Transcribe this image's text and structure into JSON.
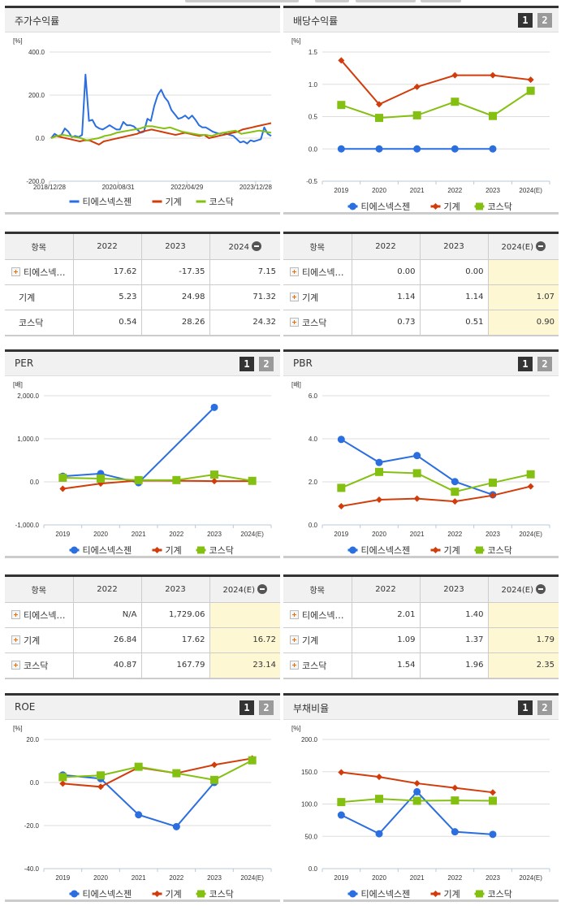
{
  "legend": {
    "s1": "티에스넥스젠",
    "s2": "기계",
    "s3": "코스닥"
  },
  "colors": {
    "s1": "#2a6ee0",
    "s2": "#d23c0a",
    "s3": "#84c011"
  },
  "badges": {
    "b1": "1",
    "b2": "2"
  },
  "panels": {
    "stock": {
      "title": "주가수익률",
      "unit": "[%]",
      "yticks": [
        "400.0",
        "200.0",
        "0.0",
        "-200.0"
      ],
      "xticks": [
        "2018/12/28",
        "2020/08/31",
        "2022/04/29",
        "2023/12/28"
      ]
    },
    "dividend": {
      "title": "배당수익률",
      "unit": "[%]",
      "yticks": [
        "1.5",
        "1.0",
        "0.5",
        "0.0",
        "-0.5"
      ],
      "xticks": [
        "2019",
        "2020",
        "2021",
        "2022",
        "2023",
        "2024(E)"
      ]
    },
    "per": {
      "title": "PER",
      "unit": "[배]",
      "yticks": [
        "2,000.0",
        "1,000.0",
        "0.0",
        "-1,000.0"
      ],
      "xticks": [
        "2019",
        "2020",
        "2021",
        "2022",
        "2023",
        "2024(E)"
      ]
    },
    "pbr": {
      "title": "PBR",
      "unit": "[배]",
      "yticks": [
        "6.0",
        "4.0",
        "2.0",
        "0.0"
      ],
      "xticks": [
        "2019",
        "2020",
        "2021",
        "2022",
        "2023",
        "2024(E)"
      ]
    },
    "roe": {
      "title": "ROE",
      "unit": "[%]",
      "yticks": [
        "20.0",
        "0.0",
        "-20.0",
        "-40.0"
      ],
      "xticks": [
        "2019",
        "2020",
        "2021",
        "2022",
        "2023",
        "2024(E)"
      ]
    },
    "debt": {
      "title": "부채비율",
      "unit": "[%]",
      "yticks": [
        "200.0",
        "150.0",
        "100.0",
        "50.0",
        "0.0"
      ],
      "xticks": [
        "2019",
        "2020",
        "2021",
        "2022",
        "2023",
        "2024(E)"
      ]
    }
  },
  "tables": {
    "stock": {
      "headers": [
        "항목",
        "2022",
        "2023",
        "2024"
      ],
      "rows": [
        {
          "name": "티에스넥…",
          "v": [
            "17.62",
            "-17.35",
            "7.15"
          ]
        },
        {
          "name": "기계",
          "v": [
            "5.23",
            "24.98",
            "71.32"
          ]
        },
        {
          "name": "코스닥",
          "v": [
            "0.54",
            "28.26",
            "24.32"
          ]
        }
      ]
    },
    "dividend": {
      "headers": [
        "항목",
        "2022",
        "2023",
        "2024(E)"
      ],
      "rows": [
        {
          "name": "티에스넥…",
          "v": [
            "0.00",
            "0.00",
            ""
          ]
        },
        {
          "name": "기계",
          "v": [
            "1.14",
            "1.14",
            "1.07"
          ]
        },
        {
          "name": "코스닥",
          "v": [
            "0.73",
            "0.51",
            "0.90"
          ]
        }
      ]
    },
    "per": {
      "headers": [
        "항목",
        "2022",
        "2023",
        "2024(E)"
      ],
      "rows": [
        {
          "name": "티에스넥…",
          "v": [
            "N/A",
            "1,729.06",
            ""
          ]
        },
        {
          "name": "기계",
          "v": [
            "26.84",
            "17.62",
            "16.72"
          ]
        },
        {
          "name": "코스닥",
          "v": [
            "40.87",
            "167.79",
            "23.14"
          ]
        }
      ]
    },
    "pbr": {
      "headers": [
        "항목",
        "2022",
        "2023",
        "2024(E)"
      ],
      "rows": [
        {
          "name": "티에스넥…",
          "v": [
            "2.01",
            "1.40",
            ""
          ]
        },
        {
          "name": "기계",
          "v": [
            "1.09",
            "1.37",
            "1.79"
          ]
        },
        {
          "name": "코스닥",
          "v": [
            "1.54",
            "1.96",
            "2.35"
          ]
        }
      ]
    }
  },
  "chart_data": [
    {
      "type": "line",
      "title": "주가수익률",
      "ylabel": "[%]",
      "ylim": [
        -200,
        400
      ],
      "x_tick_labels": [
        "2018/12/28",
        "2020/08/31",
        "2022/04/29",
        "2023/12/28"
      ],
      "note": "weekly series approximated",
      "series": [
        {
          "name": "티에스넥스젠",
          "values": [
            0,
            20,
            10,
            15,
            45,
            30,
            5,
            10,
            5,
            15,
            295,
            80,
            85,
            55,
            45,
            40,
            50,
            60,
            50,
            40,
            40,
            75,
            60,
            60,
            55,
            40,
            25,
            30,
            90,
            80,
            150,
            200,
            225,
            190,
            170,
            130,
            110,
            90,
            95,
            105,
            90,
            105,
            85,
            60,
            50,
            50,
            40,
            30,
            25,
            20,
            25,
            20,
            15,
            10,
            -5,
            -20,
            -15,
            -25,
            -10,
            -15,
            -10,
            -5,
            50,
            20,
            10
          ]
        },
        {
          "name": "기계",
          "values": [
            0,
            10,
            5,
            0,
            -5,
            -10,
            -15,
            -10,
            -10,
            -20,
            -30,
            -15,
            -10,
            -5,
            0,
            5,
            10,
            15,
            20,
            30,
            35,
            40,
            35,
            30,
            25,
            20,
            15,
            20,
            25,
            20,
            15,
            10,
            15,
            0,
            5,
            10,
            15,
            20,
            25,
            30,
            40,
            45,
            50,
            55,
            60,
            65,
            70
          ]
        },
        {
          "name": "코스닥",
          "values": [
            0,
            10,
            15,
            10,
            5,
            0,
            -10,
            -5,
            0,
            10,
            15,
            25,
            30,
            35,
            40,
            45,
            55,
            55,
            50,
            45,
            50,
            40,
            30,
            25,
            20,
            15,
            15,
            10,
            20,
            25,
            30,
            35,
            20,
            25,
            30,
            35,
            30,
            25
          ]
        }
      ]
    },
    {
      "type": "line",
      "title": "배당수익률",
      "ylabel": "[%]",
      "ylim": [
        -0.5,
        1.5
      ],
      "categories": [
        "2019",
        "2020",
        "2021",
        "2022",
        "2023",
        "2024(E)"
      ],
      "series": [
        {
          "name": "티에스넥스젠",
          "values": [
            0.0,
            0.0,
            0.0,
            0.0,
            0.0,
            null
          ]
        },
        {
          "name": "기계",
          "values": [
            1.37,
            0.69,
            0.96,
            1.14,
            1.14,
            1.07
          ]
        },
        {
          "name": "코스닥",
          "values": [
            0.68,
            0.48,
            0.52,
            0.73,
            0.51,
            0.9
          ]
        }
      ]
    },
    {
      "type": "line",
      "title": "PER",
      "ylabel": "[배]",
      "ylim": [
        -1000,
        2000
      ],
      "categories": [
        "2019",
        "2020",
        "2021",
        "2022",
        "2023",
        "2024(E)"
      ],
      "series": [
        {
          "name": "티에스넥스젠",
          "values": [
            130,
            190,
            -20,
            null,
            1729.06,
            null
          ]
        },
        {
          "name": "기계",
          "values": [
            -160,
            -40,
            30,
            26.84,
            17.62,
            16.72
          ]
        },
        {
          "name": "코스닥",
          "values": [
            95,
            75,
            40,
            40.87,
            167.79,
            23.14
          ]
        }
      ]
    },
    {
      "type": "line",
      "title": "PBR",
      "ylabel": "[배]",
      "ylim": [
        0,
        6
      ],
      "categories": [
        "2019",
        "2020",
        "2021",
        "2022",
        "2023",
        "2024(E)"
      ],
      "series": [
        {
          "name": "티에스넥스젠",
          "values": [
            3.97,
            2.9,
            3.22,
            2.01,
            1.4,
            null
          ]
        },
        {
          "name": "기계",
          "values": [
            0.87,
            1.17,
            1.22,
            1.09,
            1.37,
            1.79
          ]
        },
        {
          "name": "코스닥",
          "values": [
            1.72,
            2.46,
            2.4,
            1.54,
            1.96,
            2.35
          ]
        }
      ]
    },
    {
      "type": "line",
      "title": "ROE",
      "ylabel": "[%]",
      "ylim": [
        -40,
        20
      ],
      "categories": [
        "2019",
        "2020",
        "2021",
        "2022",
        "2023",
        "2024(E)"
      ],
      "series": [
        {
          "name": "티에스넥스젠",
          "values": [
            3.5,
            1.8,
            -15.0,
            -20.5,
            0.0,
            null
          ]
        },
        {
          "name": "기계",
          "values": [
            -0.5,
            -2.0,
            7.0,
            4.3,
            8.2,
            11.2
          ]
        },
        {
          "name": "코스닥",
          "values": [
            2.5,
            3.3,
            7.3,
            4.3,
            1.2,
            10.3
          ]
        }
      ]
    },
    {
      "type": "line",
      "title": "부채비율",
      "ylabel": "[%]",
      "ylim": [
        0,
        200
      ],
      "categories": [
        "2019",
        "2020",
        "2021",
        "2022",
        "2023",
        "2024(E)"
      ],
      "series": [
        {
          "name": "티에스넥스젠",
          "values": [
            83,
            54,
            119,
            57,
            53,
            null
          ]
        },
        {
          "name": "기계",
          "values": [
            149,
            142,
            132,
            125,
            118,
            null
          ]
        },
        {
          "name": "코스닥",
          "values": [
            103,
            108,
            105,
            105.5,
            105,
            null
          ]
        }
      ]
    }
  ]
}
